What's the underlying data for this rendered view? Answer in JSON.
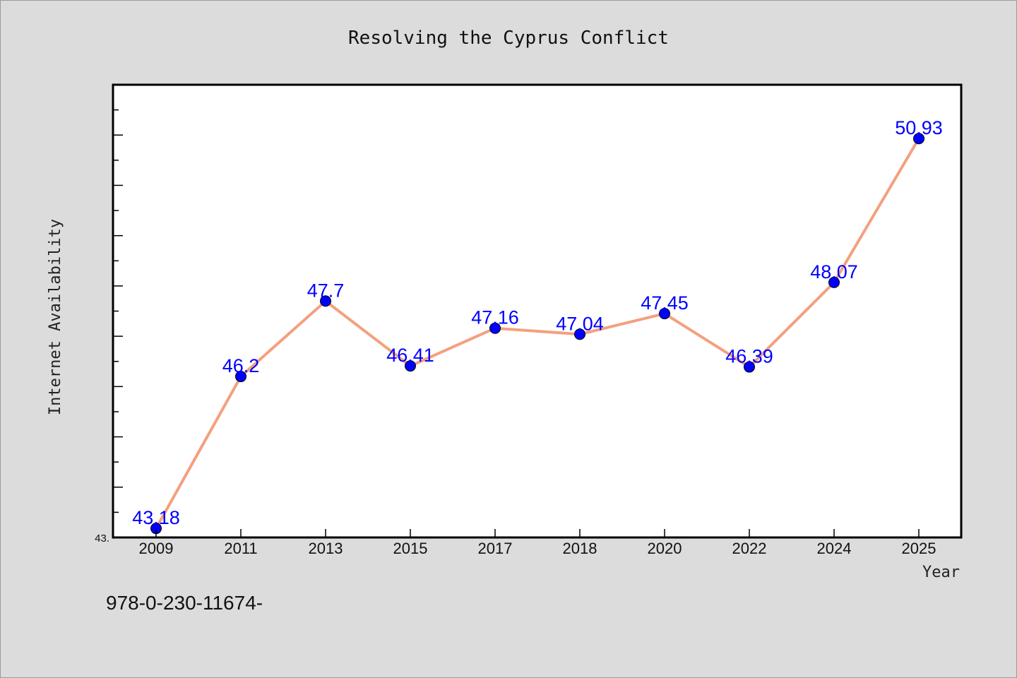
{
  "chart_data": {
    "type": "line",
    "title": "Resolving the Cyprus Conflict",
    "xlabel": "Year",
    "ylabel": "Internet Availability",
    "categories": [
      "2009",
      "2011",
      "2013",
      "2015",
      "2017",
      "2018",
      "2020",
      "2022",
      "2024",
      "2025"
    ],
    "series": [
      {
        "values": [
          43.18,
          46.2,
          47.7,
          46.41,
          47.16,
          47.04,
          47.45,
          46.39,
          48.07,
          50.93
        ]
      }
    ],
    "data_labels": [
      "43.18",
      "46.2",
      "47.7",
      "46.41",
      "47.16",
      "47.04",
      "47.45",
      "46.39",
      "48.07",
      "50.93"
    ],
    "ylim": [
      43.0,
      52.0
    ],
    "ytick_labels": [
      "43."
    ],
    "grid": false,
    "colors": {
      "background": "#dcdcdc",
      "plot_area": "#ffffff",
      "line": "#f4a07f",
      "marker": "#0000ff",
      "data_label": "#0000ff"
    }
  },
  "footnote": "978-0-230-11674-"
}
